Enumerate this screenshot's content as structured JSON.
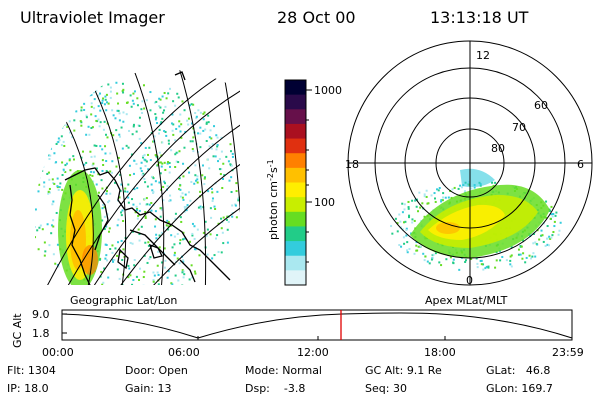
{
  "header": {
    "instrument": "Ultraviolet Imager",
    "date": "28 Oct 00",
    "time": "13:13:18 UT"
  },
  "panels": {
    "left_label": "Geographic Lat/Lon",
    "right_label": "Apex MLat/MLT"
  },
  "colorbar": {
    "unit_label": "photon cm",
    "unit_sup1": "-2",
    "unit_mid": "s",
    "unit_sup2": "-1",
    "ticks": [
      "1000",
      "100"
    ],
    "colors": [
      "#000033",
      "#2a0a4a",
      "#66104a",
      "#aa1020",
      "#e03010",
      "#ff8000",
      "#ffc000",
      "#ffee00",
      "#c8ee00",
      "#66dd22",
      "#22cc88",
      "#33ccdd",
      "#aae8f0",
      "#e0f4f8"
    ]
  },
  "polar": {
    "mlt_labels": {
      "top": "12",
      "left": "18",
      "right": "6",
      "bottom": "0"
    },
    "lat_labels": [
      "60",
      "70",
      "80"
    ]
  },
  "timeline": {
    "axis_title": "GC Alt",
    "y_ticks": [
      "9.0",
      "1.8"
    ],
    "x_ticks": [
      "00:00",
      "06:00",
      "12:00",
      "18:00",
      "23:59"
    ],
    "marker_color": "#e00000"
  },
  "info": {
    "flt_label": "Flt:",
    "flt_value": "1304",
    "ip_label": "IP:",
    "ip_value": "18.0",
    "door_label": "Door:",
    "door_value": "Open",
    "gain_label": "Gain:",
    "gain_value": "13",
    "mode_label": "Mode:",
    "mode_value": "Normal",
    "dsp_label": "Dsp:",
    "dsp_value": "-3.8",
    "gcalt_label": "GC Alt:",
    "gcalt_value": "9.1 Re",
    "seq_label": "Seq:",
    "seq_value": "30",
    "glat_label": "GLat:",
    "glat_value": "46.8",
    "glon_label": "GLon:",
    "glon_value": "169.7"
  }
}
